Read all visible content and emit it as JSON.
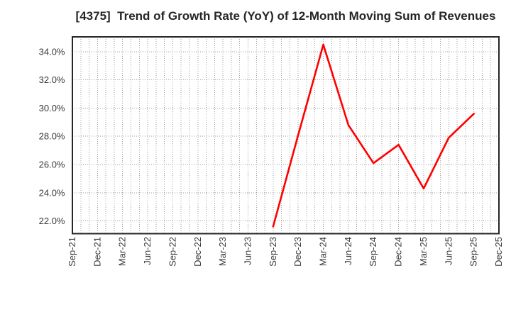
{
  "chart_data": {
    "type": "line",
    "title": "[4375]  Trend of Growth Rate (YoY) of 12-Month Moving Sum of Revenues",
    "categories": [
      "Sep-21",
      "Dec-21",
      "Mar-22",
      "Jun-22",
      "Sep-22",
      "Dec-22",
      "Mar-23",
      "Jun-23",
      "Sep-23",
      "Dec-23",
      "Mar-24",
      "Jun-24",
      "Sep-24",
      "Dec-24",
      "Mar-25",
      "Jun-25",
      "Sep-25",
      "Dec-25"
    ],
    "series": [
      {
        "name": "Growth Rate (YoY)",
        "color": "#ff0000",
        "values": [
          null,
          null,
          null,
          null,
          null,
          null,
          null,
          null,
          21.6,
          28.1,
          34.5,
          28.8,
          26.1,
          27.4,
          24.3,
          27.9,
          29.6,
          null
        ]
      }
    ],
    "xlabel": "",
    "ylabel": "",
    "yticks": [
      22,
      24,
      26,
      28,
      30,
      32,
      34
    ],
    "ytick_labels": [
      "22.0%",
      "24.0%",
      "26.0%",
      "28.0%",
      "30.0%",
      "32.0%",
      "34.0%"
    ],
    "ylim": [
      21.1,
      35.05
    ],
    "grid": true,
    "minor_x_per_interval": 3,
    "legend": false
  },
  "colors": {
    "line": "#ff0000",
    "grid": "#9e9e9e",
    "frame": "#262626",
    "tick_label": "#3a3a3a",
    "title": "#262626",
    "background": "#ffffff"
  }
}
